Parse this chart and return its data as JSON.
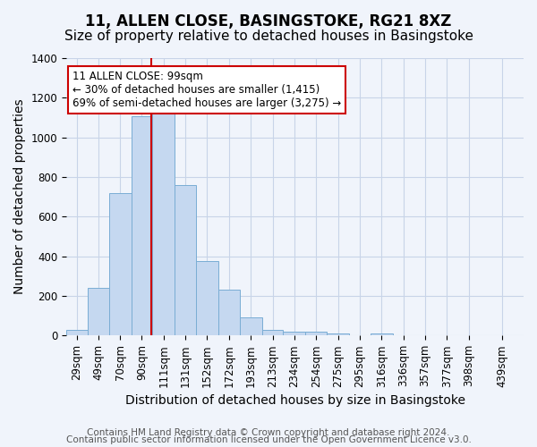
{
  "title": "11, ALLEN CLOSE, BASINGSTOKE, RG21 8XZ",
  "subtitle": "Size of property relative to detached houses in Basingstoke",
  "xlabel": "Distribution of detached houses by size in Basingstoke",
  "ylabel": "Number of detached properties",
  "bar_values": [
    30,
    240,
    720,
    1105,
    1120,
    760,
    375,
    230,
    90,
    30,
    20,
    20,
    10,
    0,
    10,
    0,
    0,
    0,
    0,
    0
  ],
  "bin_edges": [
    19,
    39,
    59,
    80,
    100,
    121,
    141,
    162,
    182,
    203,
    223,
    244,
    264,
    285,
    305,
    326,
    346,
    367,
    387,
    408,
    449
  ],
  "tick_labels": [
    "29sqm",
    "49sqm",
    "70sqm",
    "90sqm",
    "111sqm",
    "131sqm",
    "152sqm",
    "172sqm",
    "193sqm",
    "213sqm",
    "234sqm",
    "254sqm",
    "275sqm",
    "295sqm",
    "316sqm",
    "336sqm",
    "357sqm",
    "377sqm",
    "398sqm",
    "439sqm"
  ],
  "bar_color": "#c5d8f0",
  "bar_edge_color": "#7aadd4",
  "vline_x": 99,
  "vline_color": "#cc0000",
  "ylim": [
    0,
    1400
  ],
  "yticks": [
    0,
    200,
    400,
    600,
    800,
    1000,
    1200,
    1400
  ],
  "annotation_title": "11 ALLEN CLOSE: 99sqm",
  "annotation_line1": "← 30% of detached houses are smaller (1,415)",
  "annotation_line2": "69% of semi-detached houses are larger (3,275) →",
  "annotation_box_color": "#ffffff",
  "annotation_box_edge": "#cc0000",
  "footer_line1": "Contains HM Land Registry data © Crown copyright and database right 2024.",
  "footer_line2": "Contains public sector information licensed under the Open Government Licence v3.0.",
  "background_color": "#f0f4fb",
  "grid_color": "#c8d4e8",
  "title_fontsize": 12,
  "subtitle_fontsize": 11,
  "axis_label_fontsize": 10,
  "tick_fontsize": 8.5,
  "footer_fontsize": 7.5
}
